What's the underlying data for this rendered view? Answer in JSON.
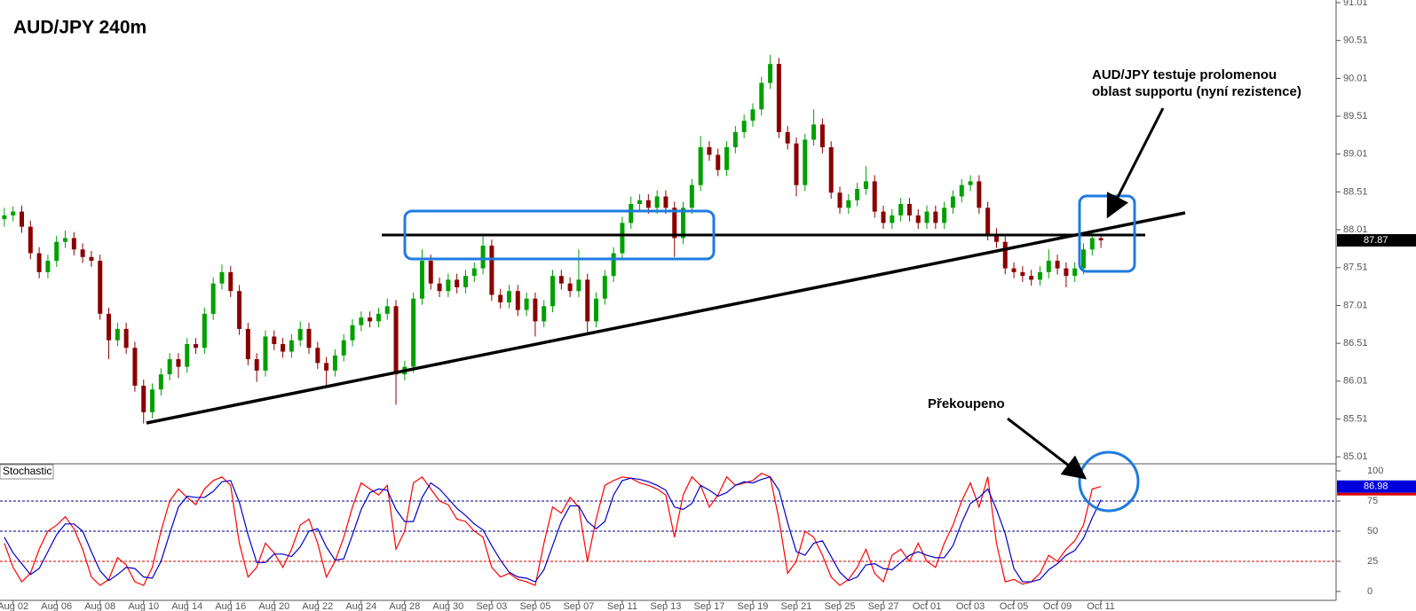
{
  "chart_data": [
    {
      "type": "candlestick",
      "title": "AUD/JPY 240m",
      "annotations": [
        [
          "AUD/JPY testuje prolomenou",
          "oblast supportu (nyní rezistence)"
        ]
      ],
      "colors": {
        "up": "#00a000",
        "down": "#8b0000"
      },
      "ylim": [
        84.93,
        91.045
      ],
      "yticks": [
        85.01,
        85.51,
        86.01,
        86.51,
        87.01,
        87.51,
        88.01,
        88.51,
        89.01,
        89.51,
        90.01,
        90.51,
        91.01
      ],
      "ohlc": [
        [
          88.15,
          88.3,
          88.05,
          88.2
        ],
        [
          88.2,
          88.32,
          88.12,
          88.25
        ],
        [
          88.25,
          88.33,
          87.97,
          88.05
        ],
        [
          88.05,
          88.13,
          87.62,
          87.7
        ],
        [
          87.7,
          87.78,
          87.37,
          87.45
        ],
        [
          87.45,
          87.68,
          87.37,
          87.6
        ],
        [
          87.6,
          87.93,
          87.52,
          87.85
        ],
        [
          87.85,
          88.0,
          87.77,
          87.9
        ],
        [
          87.9,
          87.98,
          87.67,
          87.75
        ],
        [
          87.75,
          87.83,
          87.57,
          87.65
        ],
        [
          87.65,
          87.73,
          87.52,
          87.6
        ],
        [
          87.6,
          87.68,
          86.82,
          86.9
        ],
        [
          86.9,
          86.98,
          86.3,
          86.55
        ],
        [
          86.55,
          86.78,
          86.47,
          86.7
        ],
        [
          86.7,
          86.78,
          86.37,
          86.45
        ],
        [
          86.45,
          86.53,
          85.87,
          85.95
        ],
        [
          85.95,
          86.03,
          85.45,
          85.6
        ],
        [
          85.6,
          85.98,
          85.52,
          85.9
        ],
        [
          85.9,
          86.18,
          85.82,
          86.1
        ],
        [
          86.1,
          86.38,
          86.02,
          86.3
        ],
        [
          86.3,
          86.38,
          86.05,
          86.2
        ],
        [
          86.2,
          86.58,
          86.12,
          86.5
        ],
        [
          86.5,
          86.58,
          86.37,
          86.45
        ],
        [
          86.45,
          86.98,
          86.37,
          86.9
        ],
        [
          86.9,
          87.38,
          86.82,
          87.3
        ],
        [
          87.3,
          87.55,
          87.22,
          87.45
        ],
        [
          87.45,
          87.53,
          87.12,
          87.2
        ],
        [
          87.2,
          87.28,
          86.62,
          86.7
        ],
        [
          86.7,
          86.78,
          86.22,
          86.3
        ],
        [
          86.3,
          86.38,
          86.0,
          86.15
        ],
        [
          86.15,
          86.68,
          86.07,
          86.6
        ],
        [
          86.6,
          86.68,
          86.42,
          86.5
        ],
        [
          86.5,
          86.58,
          86.32,
          86.4
        ],
        [
          86.4,
          86.63,
          86.32,
          86.55
        ],
        [
          86.55,
          86.8,
          86.47,
          86.7
        ],
        [
          86.7,
          86.78,
          86.37,
          86.45
        ],
        [
          86.45,
          86.53,
          86.17,
          86.25
        ],
        [
          86.25,
          86.33,
          85.95,
          86.15
        ],
        [
          86.15,
          86.43,
          86.07,
          86.35
        ],
        [
          86.35,
          86.63,
          86.27,
          86.55
        ],
        [
          86.55,
          86.83,
          86.47,
          86.75
        ],
        [
          86.75,
          86.93,
          86.67,
          86.85
        ],
        [
          86.85,
          86.93,
          86.72,
          86.8
        ],
        [
          86.8,
          86.98,
          86.72,
          86.9
        ],
        [
          86.9,
          87.1,
          86.82,
          87.0
        ],
        [
          87.0,
          87.08,
          85.7,
          86.1
        ],
        [
          86.1,
          86.28,
          86.02,
          86.2
        ],
        [
          86.2,
          87.18,
          86.12,
          87.1
        ],
        [
          87.1,
          87.75,
          87.02,
          87.6
        ],
        [
          87.6,
          87.68,
          87.22,
          87.3
        ],
        [
          87.3,
          87.38,
          87.12,
          87.2
        ],
        [
          87.2,
          87.43,
          87.12,
          87.35
        ],
        [
          87.35,
          87.43,
          87.17,
          87.25
        ],
        [
          87.25,
          87.48,
          87.17,
          87.4
        ],
        [
          87.4,
          87.58,
          87.32,
          87.5
        ],
        [
          87.5,
          87.95,
          87.42,
          87.8
        ],
        [
          87.8,
          87.88,
          87.07,
          87.15
        ],
        [
          87.15,
          87.23,
          86.97,
          87.05
        ],
        [
          87.05,
          87.28,
          86.97,
          87.2
        ],
        [
          87.2,
          87.28,
          86.87,
          86.95
        ],
        [
          86.95,
          87.18,
          86.87,
          87.1
        ],
        [
          87.1,
          87.18,
          86.6,
          86.8
        ],
        [
          86.8,
          87.08,
          86.72,
          87.0
        ],
        [
          87.0,
          87.48,
          86.92,
          87.4
        ],
        [
          87.4,
          87.48,
          87.22,
          87.3
        ],
        [
          87.3,
          87.38,
          87.12,
          87.2
        ],
        [
          87.2,
          87.75,
          87.12,
          87.35
        ],
        [
          87.35,
          87.43,
          86.65,
          86.8
        ],
        [
          86.8,
          87.18,
          86.72,
          87.1
        ],
        [
          87.1,
          87.48,
          87.02,
          87.4
        ],
        [
          87.4,
          87.78,
          87.32,
          87.7
        ],
        [
          87.7,
          88.18,
          87.62,
          88.1
        ],
        [
          88.1,
          88.45,
          88.02,
          88.35
        ],
        [
          88.35,
          88.48,
          88.27,
          88.4
        ],
        [
          88.4,
          88.48,
          88.22,
          88.3
        ],
        [
          88.3,
          88.53,
          88.22,
          88.45
        ],
        [
          88.45,
          88.53,
          88.22,
          88.3
        ],
        [
          88.3,
          88.38,
          87.65,
          87.9
        ],
        [
          87.9,
          88.38,
          87.82,
          88.3
        ],
        [
          88.3,
          88.68,
          88.22,
          88.6
        ],
        [
          88.6,
          89.25,
          88.52,
          89.1
        ],
        [
          89.1,
          89.18,
          88.92,
          89.0
        ],
        [
          89.0,
          89.08,
          88.72,
          88.8
        ],
        [
          88.8,
          89.18,
          88.72,
          89.1
        ],
        [
          89.1,
          89.38,
          89.02,
          89.3
        ],
        [
          89.3,
          89.53,
          89.22,
          89.45
        ],
        [
          89.45,
          89.68,
          89.37,
          89.6
        ],
        [
          89.6,
          90.03,
          89.52,
          89.95
        ],
        [
          89.95,
          90.32,
          89.87,
          90.2
        ],
        [
          90.2,
          90.28,
          89.22,
          89.3
        ],
        [
          89.3,
          89.38,
          89.07,
          89.15
        ],
        [
          89.15,
          89.23,
          88.45,
          88.6
        ],
        [
          88.6,
          89.28,
          88.52,
          89.2
        ],
        [
          89.2,
          89.6,
          89.12,
          89.4
        ],
        [
          89.4,
          89.48,
          89.02,
          89.1
        ],
        [
          89.1,
          89.18,
          88.42,
          88.5
        ],
        [
          88.5,
          88.58,
          88.22,
          88.3
        ],
        [
          88.3,
          88.48,
          88.22,
          88.4
        ],
        [
          88.4,
          88.63,
          88.32,
          88.55
        ],
        [
          88.55,
          88.85,
          88.47,
          88.65
        ],
        [
          88.65,
          88.73,
          88.17,
          88.25
        ],
        [
          88.25,
          88.33,
          88.02,
          88.1
        ],
        [
          88.1,
          88.28,
          88.02,
          88.2
        ],
        [
          88.2,
          88.43,
          88.12,
          88.35
        ],
        [
          88.35,
          88.43,
          88.12,
          88.2
        ],
        [
          88.2,
          88.28,
          88.02,
          88.1
        ],
        [
          88.1,
          88.33,
          88.02,
          88.25
        ],
        [
          88.25,
          88.33,
          88.02,
          88.1
        ],
        [
          88.1,
          88.38,
          88.02,
          88.3
        ],
        [
          88.3,
          88.53,
          88.22,
          88.45
        ],
        [
          88.45,
          88.68,
          88.37,
          88.6
        ],
        [
          88.6,
          88.73,
          88.52,
          88.65
        ],
        [
          88.65,
          88.73,
          88.22,
          88.3
        ],
        [
          88.3,
          88.38,
          87.87,
          87.95
        ],
        [
          87.95,
          88.03,
          87.77,
          87.85
        ],
        [
          87.85,
          87.93,
          87.42,
          87.5
        ],
        [
          87.5,
          87.58,
          87.37,
          87.45
        ],
        [
          87.45,
          87.53,
          87.32,
          87.4
        ],
        [
          87.4,
          87.48,
          87.27,
          87.35
        ],
        [
          87.35,
          87.53,
          87.27,
          87.45
        ],
        [
          87.45,
          87.75,
          87.37,
          87.6
        ],
        [
          87.6,
          87.68,
          87.42,
          87.5
        ],
        [
          87.5,
          87.58,
          87.25,
          87.4
        ],
        [
          87.4,
          87.58,
          87.32,
          87.5
        ],
        [
          87.5,
          87.83,
          87.42,
          87.75
        ],
        [
          87.75,
          87.98,
          87.67,
          87.9
        ],
        [
          87.9,
          87.95,
          87.77,
          87.87
        ]
      ]
    },
    {
      "type": "line",
      "title": "Stochastic",
      "annotations": [
        "Překoupeno"
      ],
      "categories": [
        null,
        "Aug 02",
        null,
        null,
        null,
        null,
        "Aug 06",
        null,
        null,
        null,
        null,
        "Aug 08",
        null,
        null,
        null,
        null,
        "Aug 10",
        null,
        null,
        null,
        null,
        "Aug 14",
        null,
        null,
        null,
        null,
        "Aug 16",
        null,
        null,
        null,
        null,
        "Aug 20",
        null,
        null,
        null,
        null,
        "Aug 22",
        null,
        null,
        null,
        null,
        "Aug 24",
        null,
        null,
        null,
        null,
        "Aug 28",
        null,
        null,
        null,
        null,
        "Aug 30",
        null,
        null,
        null,
        null,
        "Sep 03",
        null,
        null,
        null,
        null,
        "Sep 05",
        null,
        null,
        null,
        null,
        "Sep 07",
        null,
        null,
        null,
        null,
        "Sep 11",
        null,
        null,
        null,
        null,
        "Sep 13",
        null,
        null,
        null,
        null,
        "Sep 17",
        null,
        null,
        null,
        null,
        "Sep 19",
        null,
        null,
        null,
        null,
        "Sep 21",
        null,
        null,
        null,
        null,
        "Sep 25",
        null,
        null,
        null,
        null,
        "Sep 27",
        null,
        null,
        null,
        null,
        "Oct 01",
        null,
        null,
        null,
        null,
        "Oct 03",
        null,
        null,
        null,
        null,
        "Oct 05",
        null,
        null,
        null,
        null,
        "Oct 09",
        null,
        null,
        null,
        null,
        "Oct 11"
      ],
      "ylim": [
        -7.4,
        105.9
      ],
      "yticks": [
        0,
        25,
        50,
        75,
        100
      ],
      "level_colors": [
        "#cc0000",
        "#000080",
        "#000080"
      ],
      "series": [
        {
          "color": "#ff0000",
          "values": [
            40,
            20,
            8,
            15,
            35,
            50,
            55,
            62,
            52,
            35,
            12,
            5,
            10,
            28,
            22,
            8,
            5,
            20,
            50,
            75,
            85,
            78,
            72,
            85,
            92,
            95,
            88,
            40,
            12,
            20,
            40,
            32,
            20,
            35,
            55,
            60,
            40,
            12,
            25,
            45,
            70,
            90,
            85,
            80,
            88,
            35,
            50,
            90,
            95,
            85,
            75,
            72,
            60,
            58,
            50,
            45,
            20,
            12,
            15,
            10,
            8,
            5,
            40,
            70,
            65,
            78,
            70,
            25,
            60,
            88,
            92,
            95,
            94,
            90,
            88,
            85,
            80,
            45,
            80,
            95,
            88,
            70,
            80,
            95,
            88,
            90,
            92,
            98,
            95,
            60,
            15,
            25,
            50,
            45,
            30,
            12,
            5,
            10,
            20,
            35,
            15,
            8,
            30,
            35,
            25,
            40,
            25,
            20,
            40,
            55,
            75,
            90,
            70,
            95,
            40,
            8,
            10,
            6,
            8,
            15,
            30,
            25,
            35,
            42,
            55,
            85,
            86.98
          ]
        },
        {
          "color": "#0000cc",
          "values": [
            45,
            32,
            23,
            14,
            19,
            33,
            47,
            56,
            56,
            50,
            33,
            17,
            9,
            14,
            20,
            19,
            12,
            11,
            25,
            48,
            70,
            79,
            78,
            78,
            83,
            91,
            92,
            74,
            47,
            24,
            24,
            31,
            31,
            29,
            37,
            50,
            52,
            37,
            26,
            27,
            47,
            68,
            82,
            85,
            84,
            68,
            58,
            58,
            78,
            90,
            85,
            77,
            69,
            63,
            56,
            51,
            38,
            26,
            16,
            12,
            11,
            8,
            18,
            38,
            58,
            71,
            71,
            58,
            52,
            58,
            80,
            92,
            94,
            93,
            91,
            88,
            84,
            70,
            68,
            73,
            88,
            84,
            79,
            82,
            88,
            91,
            90,
            93,
            95,
            84,
            57,
            33,
            30,
            40,
            42,
            29,
            16,
            9,
            12,
            22,
            23,
            19,
            18,
            24,
            30,
            33,
            30,
            28,
            28,
            38,
            57,
            73,
            78,
            85,
            68,
            48,
            19,
            8,
            8,
            10,
            18,
            23,
            30,
            34,
            44,
            61,
            76
          ]
        }
      ]
    }
  ]
}
